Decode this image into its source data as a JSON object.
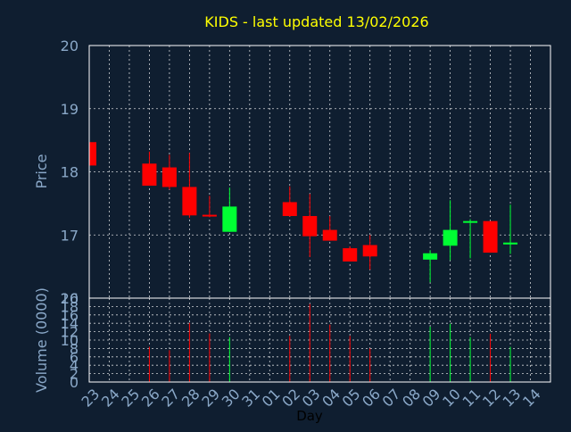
{
  "colors": {
    "background": "#0f1e30",
    "title": "#ffff00",
    "axis_text": "#8aa8c8",
    "frame": "#ffffff",
    "grid": "#ffffff",
    "up": "#00ff33",
    "down": "#ff0000",
    "xlabel": "#000000"
  },
  "chart_data": [
    {
      "type": "candlestick",
      "title": "KIDS - last updated 13/02/2026",
      "ylabel": "Price",
      "ylim": [
        16,
        20
      ],
      "yticks": [
        16,
        17,
        18,
        19,
        20
      ],
      "grid": true,
      "x_ticks": [
        "23",
        "24",
        "25",
        "26",
        "27",
        "28",
        "29",
        "30",
        "31",
        "01",
        "02",
        "03",
        "04",
        "05",
        "06",
        "07",
        "08",
        "09",
        "10",
        "11",
        "12",
        "13",
        "14"
      ],
      "candles": [
        {
          "x": "23",
          "open": 18.47,
          "high": 18.47,
          "low": 18.1,
          "close": 18.1
        },
        {
          "x": "26",
          "open": 18.13,
          "high": 18.32,
          "low": 17.78,
          "close": 17.78
        },
        {
          "x": "27",
          "open": 18.07,
          "high": 18.27,
          "low": 17.72,
          "close": 17.76
        },
        {
          "x": "28",
          "open": 17.76,
          "high": 18.3,
          "low": 17.27,
          "close": 17.31
        },
        {
          "x": "29",
          "open": 17.32,
          "high": 17.62,
          "low": 17.28,
          "close": 17.3
        },
        {
          "x": "30",
          "open": 17.05,
          "high": 17.75,
          "low": 17.05,
          "close": 17.45
        },
        {
          "x": "02",
          "open": 17.52,
          "high": 17.77,
          "low": 17.29,
          "close": 17.3
        },
        {
          "x": "03",
          "open": 17.3,
          "high": 17.65,
          "low": 16.65,
          "close": 16.98
        },
        {
          "x": "04",
          "open": 17.08,
          "high": 17.3,
          "low": 16.91,
          "close": 16.91
        },
        {
          "x": "05",
          "open": 16.79,
          "high": 16.82,
          "low": 16.58,
          "close": 16.58
        },
        {
          "x": "06",
          "open": 16.84,
          "high": 17.0,
          "low": 16.45,
          "close": 16.66
        },
        {
          "x": "09",
          "open": 16.61,
          "high": 16.76,
          "low": 16.25,
          "close": 16.71
        },
        {
          "x": "10",
          "open": 16.83,
          "high": 17.55,
          "low": 16.6,
          "close": 17.08
        },
        {
          "x": "11",
          "open": 17.2,
          "high": 17.25,
          "low": 16.63,
          "close": 17.22
        },
        {
          "x": "12",
          "open": 17.22,
          "high": 17.22,
          "low": 16.72,
          "close": 16.72
        },
        {
          "x": "13",
          "open": 16.85,
          "high": 17.48,
          "low": 16.7,
          "close": 16.88
        }
      ]
    },
    {
      "type": "bar",
      "ylabel": "Volume (0000)",
      "xlabel": "Day",
      "ylim": [
        0,
        20
      ],
      "yticks": [
        0,
        2,
        4,
        6,
        8,
        10,
        12,
        14,
        16,
        18
      ],
      "top_label": "20",
      "grid": true,
      "bars": [
        {
          "x": "26",
          "value": 8.4,
          "direction": "down"
        },
        {
          "x": "27",
          "value": 7.6,
          "direction": "down"
        },
        {
          "x": "28",
          "value": 14.1,
          "direction": "down"
        },
        {
          "x": "29",
          "value": 11.6,
          "direction": "down"
        },
        {
          "x": "30",
          "value": 10.7,
          "direction": "up"
        },
        {
          "x": "02",
          "value": 11.0,
          "direction": "down"
        },
        {
          "x": "03",
          "value": 18.6,
          "direction": "down"
        },
        {
          "x": "04",
          "value": 13.7,
          "direction": "down"
        },
        {
          "x": "05",
          "value": 11.0,
          "direction": "down"
        },
        {
          "x": "06",
          "value": 8.0,
          "direction": "down"
        },
        {
          "x": "09",
          "value": 13.2,
          "direction": "up"
        },
        {
          "x": "10",
          "value": 13.9,
          "direction": "up"
        },
        {
          "x": "11",
          "value": 10.7,
          "direction": "up"
        },
        {
          "x": "12",
          "value": 11.5,
          "direction": "down"
        },
        {
          "x": "13",
          "value": 8.4,
          "direction": "up"
        }
      ]
    }
  ]
}
